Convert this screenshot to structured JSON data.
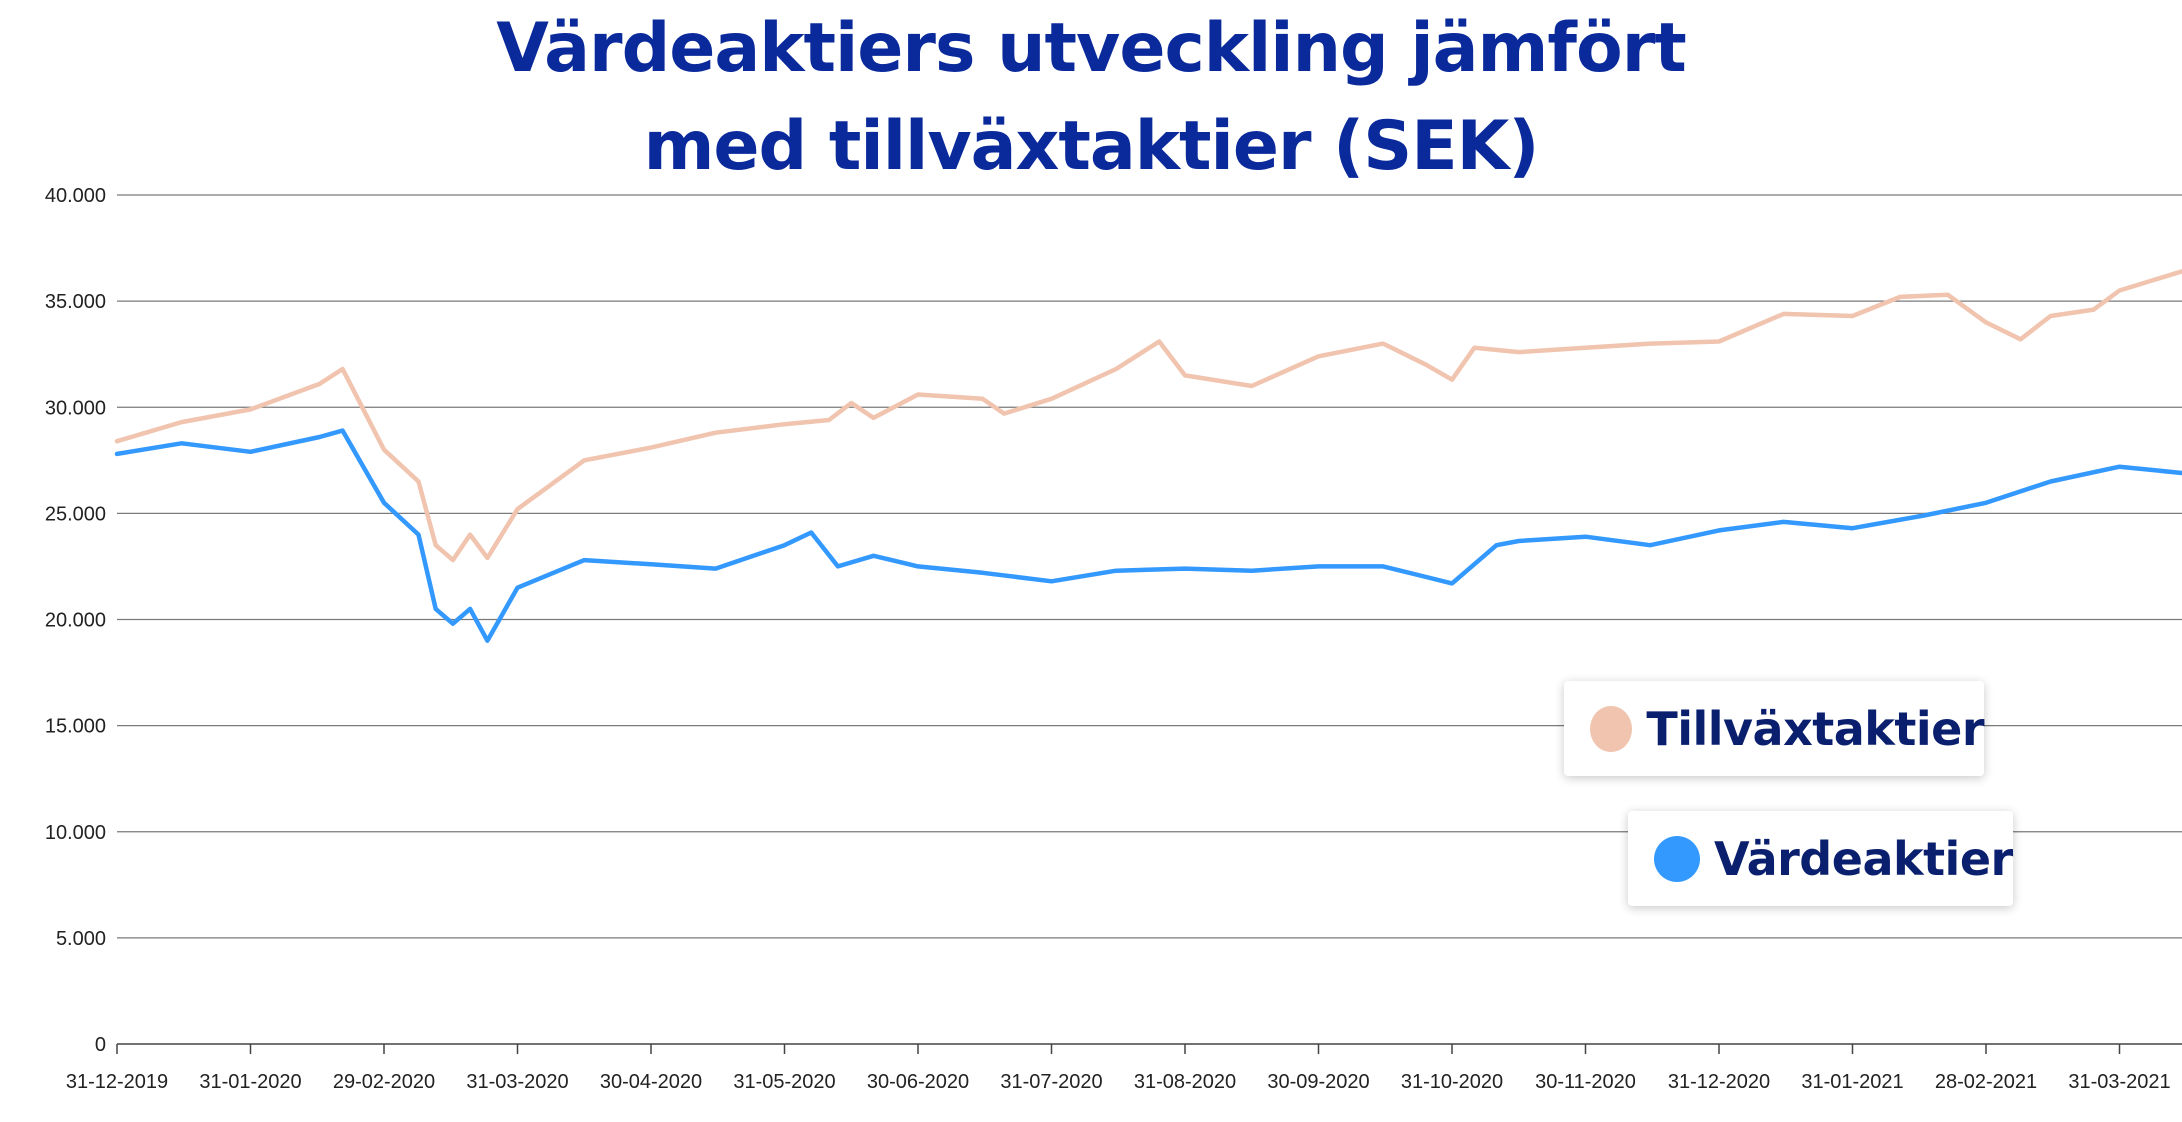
{
  "chart_data": {
    "type": "line",
    "title_lines": [
      "Värdeaktiers utveckling jämfört",
      "med tillväxtaktier (SEK)"
    ],
    "xlabel": "",
    "ylabel": "",
    "ylim": [
      0,
      40000
    ],
    "y_ticks": [
      0,
      5000,
      10000,
      15000,
      20000,
      25000,
      30000,
      35000,
      40000
    ],
    "y_tick_labels": [
      "0",
      "5.000",
      "10.000",
      "15.000",
      "20.000",
      "25.000",
      "30.000",
      "35.000",
      "40.000"
    ],
    "x_tick_labels": [
      "31-12-2019",
      "31-01-2020",
      "29-02-2020",
      "31-03-2020",
      "30-04-2020",
      "31-05-2020",
      "30-06-2020",
      "31-07-2020",
      "31-08-2020",
      "30-09-2020",
      "31-10-2020",
      "30-11-2020",
      "31-12-2020",
      "31-01-2021",
      "28-02-2021",
      "31-03-2021"
    ],
    "grid": true,
    "legend_position": "bottom-right",
    "series": [
      {
        "name": "Tillväxtaktier",
        "color": "#f0c4ae",
        "points": [
          [
            "31-12-2019",
            28400
          ],
          [
            "15-01-2020",
            29300
          ],
          [
            "31-01-2020",
            29900
          ],
          [
            "15-02-2020",
            31100
          ],
          [
            "20-02-2020",
            31800
          ],
          [
            "29-02-2020",
            28000
          ],
          [
            "08-03-2020",
            26500
          ],
          [
            "12-03-2020",
            23500
          ],
          [
            "16-03-2020",
            22800
          ],
          [
            "20-03-2020",
            24000
          ],
          [
            "24-03-2020",
            22900
          ],
          [
            "31-03-2020",
            25200
          ],
          [
            "15-04-2020",
            27500
          ],
          [
            "30-04-2020",
            28100
          ],
          [
            "15-05-2020",
            28800
          ],
          [
            "31-05-2020",
            29200
          ],
          [
            "10-06-2020",
            29400
          ],
          [
            "15-06-2020",
            30200
          ],
          [
            "20-06-2020",
            29500
          ],
          [
            "30-06-2020",
            30600
          ],
          [
            "15-07-2020",
            30400
          ],
          [
            "20-07-2020",
            29700
          ],
          [
            "31-07-2020",
            30400
          ],
          [
            "15-08-2020",
            31800
          ],
          [
            "25-08-2020",
            33100
          ],
          [
            "31-08-2020",
            31500
          ],
          [
            "15-09-2020",
            31000
          ],
          [
            "30-09-2020",
            32400
          ],
          [
            "15-10-2020",
            33000
          ],
          [
            "25-10-2020",
            32000
          ],
          [
            "31-10-2020",
            31300
          ],
          [
            "05-11-2020",
            32800
          ],
          [
            "15-11-2020",
            32600
          ],
          [
            "30-11-2020",
            32800
          ],
          [
            "15-12-2020",
            33000
          ],
          [
            "31-12-2020",
            33100
          ],
          [
            "15-01-2021",
            34400
          ],
          [
            "31-01-2021",
            34300
          ],
          [
            "10-02-2021",
            35200
          ],
          [
            "20-02-2021",
            35300
          ],
          [
            "28-02-2021",
            34000
          ],
          [
            "08-03-2021",
            33200
          ],
          [
            "15-03-2021",
            34300
          ],
          [
            "25-03-2021",
            34600
          ],
          [
            "31-03-2021",
            35500
          ],
          [
            "14-04-2021",
            36400
          ]
        ]
      },
      {
        "name": "Värdeaktier",
        "color": "#3399ff",
        "points": [
          [
            "31-12-2019",
            27800
          ],
          [
            "15-01-2020",
            28300
          ],
          [
            "31-01-2020",
            27900
          ],
          [
            "15-02-2020",
            28600
          ],
          [
            "20-02-2020",
            28900
          ],
          [
            "29-02-2020",
            25500
          ],
          [
            "08-03-2020",
            24000
          ],
          [
            "12-03-2020",
            20500
          ],
          [
            "16-03-2020",
            19800
          ],
          [
            "20-03-2020",
            20500
          ],
          [
            "24-03-2020",
            19000
          ],
          [
            "31-03-2020",
            21500
          ],
          [
            "15-04-2020",
            22800
          ],
          [
            "30-04-2020",
            22600
          ],
          [
            "15-05-2020",
            22400
          ],
          [
            "31-05-2020",
            23500
          ],
          [
            "06-06-2020",
            24100
          ],
          [
            "12-06-2020",
            22500
          ],
          [
            "20-06-2020",
            23000
          ],
          [
            "30-06-2020",
            22500
          ],
          [
            "15-07-2020",
            22200
          ],
          [
            "31-07-2020",
            21800
          ],
          [
            "15-08-2020",
            22300
          ],
          [
            "31-08-2020",
            22400
          ],
          [
            "15-09-2020",
            22300
          ],
          [
            "30-09-2020",
            22500
          ],
          [
            "15-10-2020",
            22500
          ],
          [
            "25-10-2020",
            22000
          ],
          [
            "31-10-2020",
            21700
          ],
          [
            "10-11-2020",
            23500
          ],
          [
            "15-11-2020",
            23700
          ],
          [
            "30-11-2020",
            23900
          ],
          [
            "15-12-2020",
            23500
          ],
          [
            "31-12-2020",
            24200
          ],
          [
            "15-01-2021",
            24600
          ],
          [
            "31-01-2021",
            24300
          ],
          [
            "15-02-2021",
            24900
          ],
          [
            "28-02-2021",
            25500
          ],
          [
            "15-03-2021",
            26500
          ],
          [
            "31-03-2021",
            27200
          ],
          [
            "14-04-2021",
            26900
          ]
        ]
      }
    ]
  }
}
